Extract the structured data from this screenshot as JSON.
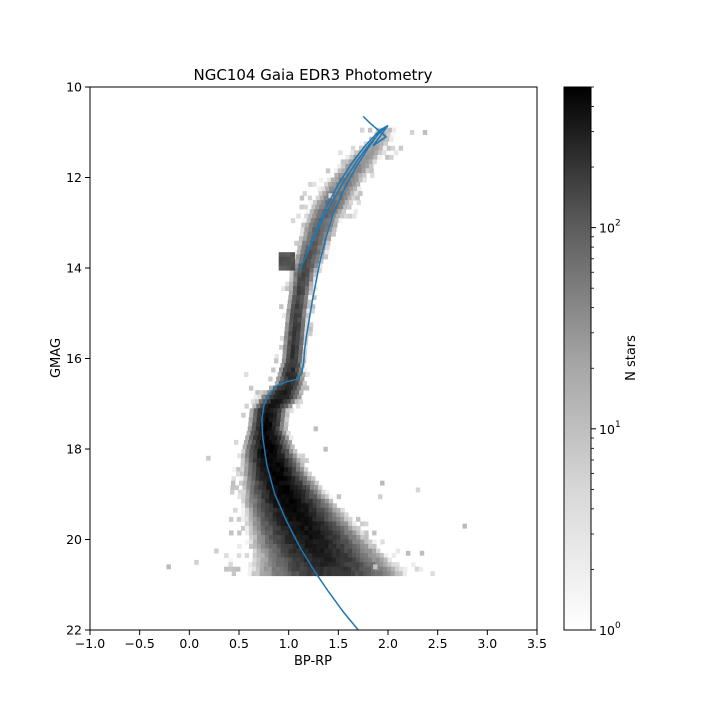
{
  "chart_data": {
    "type": "heatmap",
    "title": "NGC104 Gaia EDR3 Photometry",
    "xlabel": "BP-RP",
    "ylabel": "GMAG",
    "xlim": [
      -1.0,
      3.5
    ],
    "ylim": [
      22,
      10
    ],
    "y_inverted": true,
    "grid": false,
    "x_ticks": [
      -1.0,
      -0.5,
      0.0,
      0.5,
      1.0,
      1.5,
      2.0,
      2.5,
      3.0,
      3.5
    ],
    "x_tick_labels": [
      "−1.0",
      "−0.5",
      "0.0",
      "0.5",
      "1.0",
      "1.5",
      "2.0",
      "2.5",
      "3.0",
      "3.5"
    ],
    "y_ticks": [
      10,
      12,
      14,
      16,
      18,
      20,
      22
    ],
    "y_tick_labels": [
      "10",
      "12",
      "14",
      "16",
      "18",
      "20",
      "22"
    ],
    "histogram": {
      "description": "2D density histogram of stars (log color scale, grey colormap)",
      "bin_size": {
        "x": 0.04,
        "y": 0.1
      },
      "ridge": [
        {
          "g": 10.9,
          "x": 1.97,
          "w": 0.06,
          "n": 3
        },
        {
          "g": 11.2,
          "x": 1.85,
          "w": 0.07,
          "n": 6
        },
        {
          "g": 11.6,
          "x": 1.7,
          "w": 0.08,
          "n": 10
        },
        {
          "g": 12.0,
          "x": 1.56,
          "w": 0.08,
          "n": 15
        },
        {
          "g": 12.5,
          "x": 1.42,
          "w": 0.08,
          "n": 22
        },
        {
          "g": 13.0,
          "x": 1.3,
          "w": 0.07,
          "n": 30
        },
        {
          "g": 13.5,
          "x": 1.22,
          "w": 0.06,
          "n": 40
        },
        {
          "g": 14.0,
          "x": 1.14,
          "w": 0.05,
          "n": 60
        },
        {
          "g": 14.5,
          "x": 1.09,
          "w": 0.04,
          "n": 70
        },
        {
          "g": 15.0,
          "x": 1.06,
          "w": 0.04,
          "n": 80
        },
        {
          "g": 15.5,
          "x": 1.04,
          "w": 0.04,
          "n": 95
        },
        {
          "g": 16.0,
          "x": 1.02,
          "w": 0.04,
          "n": 120
        },
        {
          "g": 16.5,
          "x": 0.99,
          "w": 0.05,
          "n": 170
        },
        {
          "g": 16.8,
          "x": 0.9,
          "w": 0.07,
          "n": 220
        },
        {
          "g": 17.1,
          "x": 0.78,
          "w": 0.06,
          "n": 300
        },
        {
          "g": 17.5,
          "x": 0.76,
          "w": 0.06,
          "n": 400
        },
        {
          "g": 18.0,
          "x": 0.78,
          "w": 0.08,
          "n": 500
        },
        {
          "g": 18.5,
          "x": 0.85,
          "w": 0.1,
          "n": 480
        },
        {
          "g": 19.0,
          "x": 0.95,
          "w": 0.13,
          "n": 420
        },
        {
          "g": 19.5,
          "x": 1.07,
          "w": 0.16,
          "n": 340
        },
        {
          "g": 20.0,
          "x": 1.2,
          "w": 0.19,
          "n": 260
        },
        {
          "g": 20.4,
          "x": 1.32,
          "w": 0.22,
          "n": 180
        },
        {
          "g": 20.8,
          "x": 1.4,
          "w": 0.28,
          "n": 90
        }
      ],
      "red_clump": {
        "g": 13.8,
        "x_range": [
          0.9,
          1.05
        ],
        "n": 60
      },
      "scatter_outliers": [
        [
          2.35,
          10.95
        ],
        [
          2.22,
          10.95
        ],
        [
          1.4,
          12.35
        ],
        [
          0.55,
          16.3
        ],
        [
          0.6,
          16.6
        ],
        [
          0.17,
          18.15
        ],
        [
          0.45,
          17.8
        ],
        [
          -0.23,
          20.55
        ],
        [
          0.05,
          20.45
        ],
        [
          0.25,
          20.2
        ],
        [
          1.92,
          18.7
        ],
        [
          2.28,
          18.85
        ],
        [
          2.75,
          19.65
        ],
        [
          1.9,
          19.0
        ],
        [
          2.18,
          20.25
        ],
        [
          2.32,
          20.25
        ],
        [
          1.85,
          20.55
        ],
        [
          0.35,
          20.3
        ],
        [
          1.25,
          17.5
        ],
        [
          1.35,
          17.95
        ]
      ],
      "vmin": 1,
      "vmax": 500
    },
    "isochrone": {
      "color": "#1f77b4",
      "x": [
        1.7,
        1.55,
        1.4,
        1.26,
        1.12,
        0.98,
        0.86,
        0.78,
        0.74,
        0.73,
        0.75,
        0.8,
        0.88,
        0.97,
        1.08,
        1.13,
        1.15,
        1.16,
        1.18,
        1.21,
        1.24,
        1.28,
        1.32,
        1.38,
        1.45,
        1.55,
        1.67,
        1.8,
        1.93,
        1.97,
        1.9,
        1.8,
        1.7,
        1.55,
        1.4,
        1.26,
        1.14,
        1.11,
        1.17,
        1.27,
        1.38,
        1.5,
        1.63,
        1.77,
        1.92,
        2.0,
        1.85,
        1.98,
        1.9,
        1.82,
        1.75
      ],
      "y": [
        22.0,
        21.6,
        21.15,
        20.7,
        20.2,
        19.6,
        19.0,
        18.35,
        17.75,
        17.35,
        17.05,
        16.8,
        16.6,
        16.52,
        16.46,
        16.35,
        16.1,
        15.8,
        15.5,
        15.1,
        14.7,
        14.25,
        13.8,
        13.3,
        12.8,
        12.3,
        11.8,
        11.35,
        10.95,
        10.9,
        11.05,
        11.3,
        11.6,
        12.1,
        12.7,
        13.3,
        13.9,
        14.05,
        13.75,
        13.2,
        12.65,
        12.15,
        11.7,
        11.3,
        10.95,
        10.85,
        11.3,
        11.1,
        10.95,
        10.8,
        10.65
      ]
    },
    "colorbar": {
      "label": "N stars",
      "scale": "log",
      "range": [
        1,
        500
      ],
      "tick_values": [
        1,
        10,
        100
      ],
      "tick_labels": [
        "10",
        "10",
        "10"
      ],
      "tick_exponents": [
        "0",
        "1",
        "2"
      ],
      "colormap": "Greys"
    }
  }
}
